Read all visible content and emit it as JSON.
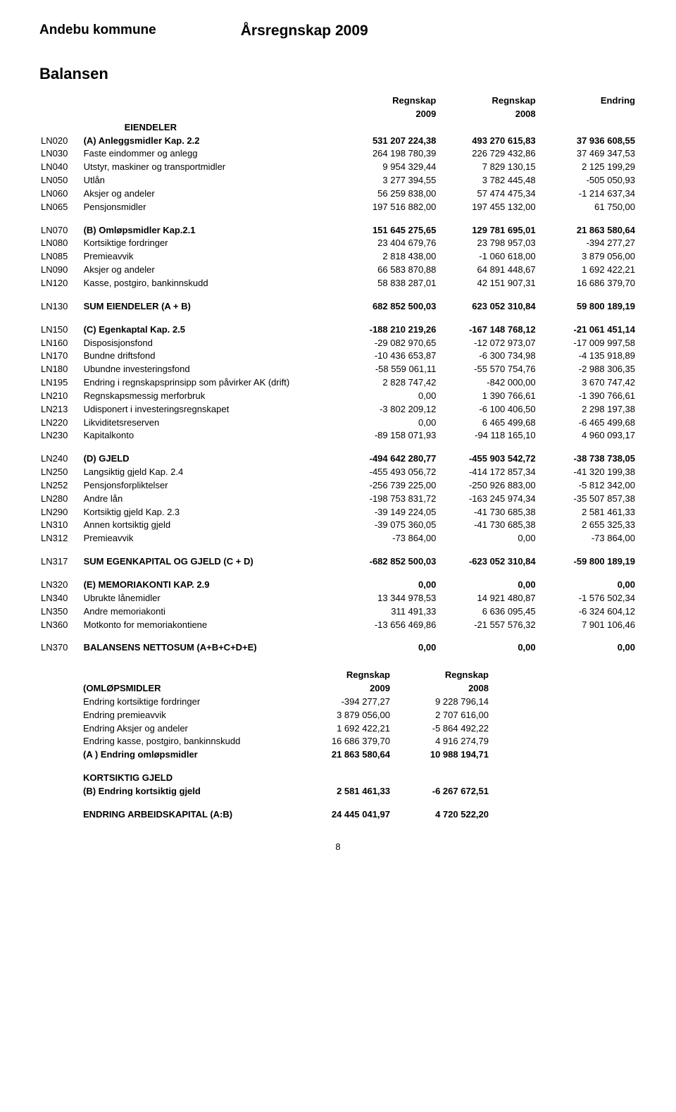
{
  "header": {
    "org": "Andebu kommune",
    "title": "Årsregnskap 2009"
  },
  "section_title": "Balansen",
  "col_headers": {
    "c1": "Regnskap",
    "c1b": "2009",
    "c2": "Regnskap",
    "c2b": "2008",
    "c3": "Endring"
  },
  "groups": [
    {
      "type": "heading",
      "code": "",
      "label": "EIENDELER"
    },
    {
      "code": "LN020",
      "label": "(A) Anleggsmidler Kap. 2.2",
      "bold": true,
      "v1": "531 207 224,38",
      "v2": "493 270 615,83",
      "v3": "37 936 608,55"
    },
    {
      "code": "LN030",
      "label": "Faste eindommer og anlegg",
      "v1": "264 198 780,39",
      "v2": "226 729 432,86",
      "v3": "37 469 347,53"
    },
    {
      "code": "LN040",
      "label": "Utstyr, maskiner og transportmidler",
      "v1": "9 954 329,44",
      "v2": "7 829 130,15",
      "v3": "2 125 199,29"
    },
    {
      "code": "LN050",
      "label": "Utlån",
      "v1": "3 277 394,55",
      "v2": "3 782 445,48",
      "v3": "-505 050,93"
    },
    {
      "code": "LN060",
      "label": "Aksjer og andeler",
      "v1": "56 259 838,00",
      "v2": "57 474 475,34",
      "v3": "-1 214 637,34"
    },
    {
      "code": "LN065",
      "label": "Pensjonsmidler",
      "v1": "197 516 882,00",
      "v2": "197 455 132,00",
      "v3": "61 750,00"
    },
    {
      "type": "spacer"
    },
    {
      "code": "LN070",
      "label": "(B) Omløpsmidler Kap.2.1",
      "bold": true,
      "v1": "151 645 275,65",
      "v2": "129 781 695,01",
      "v3": "21 863 580,64"
    },
    {
      "code": "LN080",
      "label": "Kortsiktige fordringer",
      "v1": "23 404 679,76",
      "v2": "23 798 957,03",
      "v3": "-394 277,27"
    },
    {
      "code": "LN085",
      "label": "Premieavvik",
      "v1": "2 818 438,00",
      "v2": "-1 060 618,00",
      "v3": "3 879 056,00"
    },
    {
      "code": "LN090",
      "label": "Aksjer og andeler",
      "v1": "66 583 870,88",
      "v2": "64 891 448,67",
      "v3": "1 692 422,21"
    },
    {
      "code": "LN120",
      "label": "Kasse, postgiro, bankinnskudd",
      "v1": "58 838 287,01",
      "v2": "42 151 907,31",
      "v3": "16 686 379,70"
    },
    {
      "type": "spacer"
    },
    {
      "code": "LN130",
      "label": "SUM EIENDELER (A + B)",
      "bold": true,
      "v1": "682 852 500,03",
      "v2": "623 052 310,84",
      "v3": "59 800 189,19"
    },
    {
      "type": "spacer"
    },
    {
      "code": "LN150",
      "label": "(C) Egenkaptal Kap. 2.5",
      "bold": true,
      "v1": "-188 210 219,26",
      "v2": "-167 148 768,12",
      "v3": "-21 061 451,14"
    },
    {
      "code": "LN160",
      "label": "Disposisjonsfond",
      "v1": "-29 082 970,65",
      "v2": "-12 072 973,07",
      "v3": "-17 009 997,58"
    },
    {
      "code": "LN170",
      "label": "Bundne driftsfond",
      "v1": "-10 436 653,87",
      "v2": "-6 300 734,98",
      "v3": "-4 135 918,89"
    },
    {
      "code": "LN180",
      "label": "Ubundne investeringsfond",
      "v1": "-58 559 061,11",
      "v2": "-55 570 754,76",
      "v3": "-2 988 306,35"
    },
    {
      "code": "LN195",
      "label": "Endring i regnskapsprinsipp som påvirker AK (drift)",
      "v1": "2 828 747,42",
      "v2": "-842 000,00",
      "v3": "3 670 747,42"
    },
    {
      "code": "LN210",
      "label": "Regnskapsmessig merforbruk",
      "v1": "0,00",
      "v2": "1 390 766,61",
      "v3": "-1 390 766,61"
    },
    {
      "code": "LN213",
      "label": "Udisponert i investeringsregnskapet",
      "v1": "-3 802 209,12",
      "v2": "-6 100 406,50",
      "v3": "2 298 197,38"
    },
    {
      "code": "LN220",
      "label": "Likviditetsreserven",
      "v1": "0,00",
      "v2": "6 465 499,68",
      "v3": "-6 465 499,68"
    },
    {
      "code": "LN230",
      "label": "Kapitalkonto",
      "v1": "-89 158 071,93",
      "v2": "-94 118 165,10",
      "v3": "4 960 093,17"
    },
    {
      "type": "spacer"
    },
    {
      "code": "LN240",
      "label": "(D) GJELD",
      "bold": true,
      "v1": "-494 642 280,77",
      "v2": "-455 903 542,72",
      "v3": "-38 738 738,05"
    },
    {
      "code": "LN250",
      "label": "Langsiktig gjeld Kap. 2.4",
      "v1": "-455 493 056,72",
      "v2": "-414 172 857,34",
      "v3": "-41 320 199,38"
    },
    {
      "code": "LN252",
      "label": "Pensjonsforpliktelser",
      "v1": "-256 739 225,00",
      "v2": "-250 926 883,00",
      "v3": "-5 812 342,00"
    },
    {
      "code": "LN280",
      "label": "Andre lån",
      "v1": "-198 753 831,72",
      "v2": "-163 245 974,34",
      "v3": "-35 507 857,38"
    },
    {
      "code": "LN290",
      "label": "Kortsiktig gjeld Kap. 2.3",
      "v1": "-39 149 224,05",
      "v2": "-41 730 685,38",
      "v3": "2 581 461,33"
    },
    {
      "code": "LN310",
      "label": "Annen kortsiktig gjeld",
      "v1": "-39 075 360,05",
      "v2": "-41 730 685,38",
      "v3": "2 655 325,33"
    },
    {
      "code": "LN312",
      "label": "Premieavvik",
      "v1": "-73 864,00",
      "v2": "0,00",
      "v3": "-73 864,00"
    },
    {
      "type": "spacer"
    },
    {
      "code": "LN317",
      "label": "SUM EGENKAPITAL OG GJELD (C + D)",
      "bold": true,
      "v1": "-682 852 500,03",
      "v2": "-623 052 310,84",
      "v3": "-59 800 189,19"
    },
    {
      "type": "spacer"
    },
    {
      "code": "LN320",
      "label": "(E) MEMORIAKONTI KAP.  2.9",
      "bold": true,
      "v1": "0,00",
      "v2": "0,00",
      "v3": "0,00"
    },
    {
      "code": "LN340",
      "label": "Ubrukte lånemidler",
      "v1": "13 344 978,53",
      "v2": "14 921 480,87",
      "v3": "-1 576 502,34"
    },
    {
      "code": "LN350",
      "label": "Andre memoriakonti",
      "v1": "311 491,33",
      "v2": "6 636 095,45",
      "v3": "-6 324 604,12"
    },
    {
      "code": "LN360",
      "label": "Motkonto for memoriakontiene",
      "v1": "-13 656 469,86",
      "v2": "-21 557 576,32",
      "v3": "7 901 106,46"
    },
    {
      "type": "spacer"
    },
    {
      "code": "LN370",
      "label": "BALANSENS NETTOSUM (A+B+C+D+E)",
      "bold": true,
      "v1": "0,00",
      "v2": "0,00",
      "v3": "0,00"
    }
  ],
  "section2": {
    "col_headers": {
      "c1": "Regnskap",
      "c1b": "2009",
      "c2": "Regnskap",
      "c2b": "2008"
    },
    "rows": [
      {
        "label": "(OMLØPSMIDLER",
        "bold": true,
        "is_head_row": true
      },
      {
        "label": "Endring kortsiktige fordringer",
        "v1": "-394 277,27",
        "v2": "9 228 796,14"
      },
      {
        "label": "Endring premieavvik",
        "v1": "3 879 056,00",
        "v2": "2 707 616,00"
      },
      {
        "label": "Endring Aksjer og andeler",
        "v1": "1 692 422,21",
        "v2": "-5 864 492,22"
      },
      {
        "label": "Endring kasse, postgiro, bankinnskudd",
        "v1": "16 686 379,70",
        "v2": "4 916 274,79"
      },
      {
        "label": "(A ) Endring omløpsmidler",
        "bold": true,
        "v1": "21 863 580,64",
        "v2": "10 988 194,71"
      },
      {
        "type": "spacer"
      },
      {
        "label": "KORTSIKTIG GJELD",
        "bold": true
      },
      {
        "label": "(B) Endring kortsiktig gjeld",
        "bold": true,
        "v1": "2 581 461,33",
        "v2": "-6 267 672,51"
      },
      {
        "type": "spacer"
      },
      {
        "label": "ENDRING ARBEIDSKAPITAL (A:B)",
        "bold": true,
        "v1": "24 445 041,97",
        "v2": "4 720 522,20"
      }
    ]
  },
  "pagenum": "8"
}
